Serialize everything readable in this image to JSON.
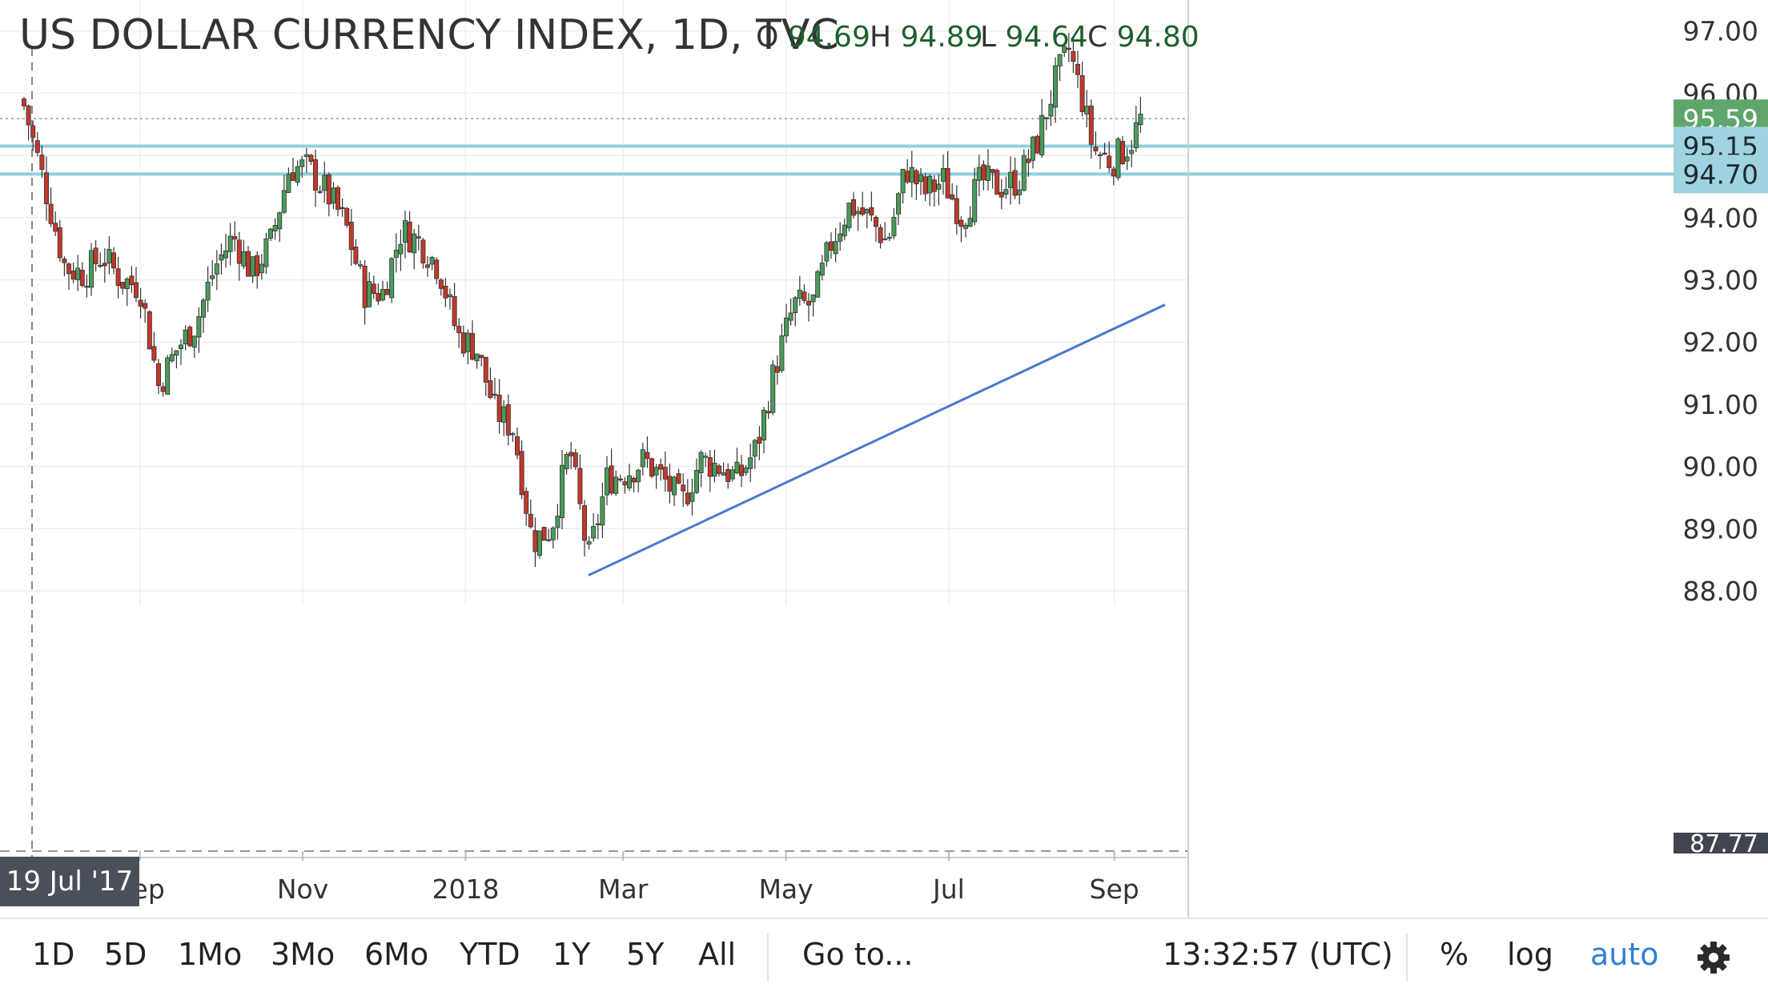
{
  "header": {
    "title": "US DOLLAR CURRENCY INDEX, 1D, TVC",
    "ohlc": [
      {
        "key": "O",
        "value": "94.69"
      },
      {
        "key": "H",
        "value": "94.89"
      },
      {
        "key": "L",
        "value": "94.64"
      },
      {
        "key": "C",
        "value": "94.80"
      }
    ]
  },
  "crosshair_date": "19 Jul '17",
  "toolbar": {
    "ranges": [
      "1D",
      "5D",
      "1Mo",
      "3Mo",
      "6Mo",
      "YTD",
      "1Y",
      "5Y",
      "All"
    ],
    "goto_label": "Go to...",
    "clock": "13:32:57 (UTC)",
    "percent_label": "%",
    "log_label": "log",
    "auto_label": "auto",
    "settings_icon": "gear-icon"
  },
  "colors": {
    "up_candle": "#4a9a5b",
    "down_candle": "#c0392b",
    "horizontal_lines": "#8fcfdb",
    "trendline": "#4a78d0",
    "current_price_badge": "#5fa56c",
    "level_badge": "#9fd3e0",
    "auto_active": "#2f7fd8"
  },
  "chart_data": {
    "type": "candlestick",
    "title": "US DOLLAR CURRENCY INDEX, 1D, TVC",
    "y_ticks": [
      "88.00",
      "89.00",
      "90.00",
      "91.00",
      "92.00",
      "93.00",
      "94.00",
      "96.00",
      "97.00"
    ],
    "ylim": [
      87.77,
      97.3
    ],
    "x_ticks": [
      "Sep",
      "Nov",
      "2018",
      "Mar",
      "May",
      "Jul",
      "Sep"
    ],
    "x_range": [
      "2017-07-19",
      "2018-09-20"
    ],
    "current_price": "95.59",
    "last_visible_low": "87.77",
    "horizontal_levels": [
      {
        "value": 95.15,
        "label": "95.15"
      },
      {
        "value": 94.7,
        "label": "94.70"
      }
    ],
    "trendline": {
      "start": {
        "date": "2018-02-16",
        "value": 88.25
      },
      "end": {
        "date": "2018-09-20",
        "value": 92.6
      }
    },
    "close_path": [
      [
        "2017-07-19",
        95.9
      ],
      [
        "2017-07-28",
        94.4
      ],
      [
        "2017-08-04",
        93.2
      ],
      [
        "2017-08-11",
        93.1
      ],
      [
        "2017-08-18",
        93.4
      ],
      [
        "2017-08-25",
        93.0
      ],
      [
        "2017-09-01",
        92.9
      ],
      [
        "2017-09-08",
        91.3
      ],
      [
        "2017-09-15",
        91.9
      ],
      [
        "2017-09-22",
        92.3
      ],
      [
        "2017-09-29",
        93.2
      ],
      [
        "2017-10-06",
        93.7
      ],
      [
        "2017-10-13",
        93.1
      ],
      [
        "2017-10-20",
        93.6
      ],
      [
        "2017-10-27",
        94.8
      ],
      [
        "2017-11-03",
        94.8
      ],
      [
        "2017-11-10",
        94.4
      ],
      [
        "2017-11-17",
        93.9
      ],
      [
        "2017-11-24",
        92.8
      ],
      [
        "2017-12-01",
        92.8
      ],
      [
        "2017-12-08",
        93.8
      ],
      [
        "2017-12-15",
        93.6
      ],
      [
        "2017-12-22",
        93.2
      ],
      [
        "2017-12-29",
        92.1
      ],
      [
        "2018-01-05",
        91.9
      ],
      [
        "2018-01-12",
        90.9
      ],
      [
        "2018-01-19",
        90.6
      ],
      [
        "2018-01-26",
        88.8
      ],
      [
        "2018-02-02",
        89.0
      ],
      [
        "2018-02-09",
        90.3
      ],
      [
        "2018-02-16",
        88.5
      ],
      [
        "2018-02-23",
        89.8
      ],
      [
        "2018-03-02",
        89.9
      ],
      [
        "2018-03-09",
        90.1
      ],
      [
        "2018-03-16",
        89.8
      ],
      [
        "2018-03-23",
        89.4
      ],
      [
        "2018-03-30",
        90.1
      ],
      [
        "2018-04-06",
        90.0
      ],
      [
        "2018-04-13",
        89.8
      ],
      [
        "2018-04-20",
        90.3
      ],
      [
        "2018-04-27",
        91.6
      ],
      [
        "2018-05-04",
        92.6
      ],
      [
        "2018-05-11",
        92.6
      ],
      [
        "2018-05-18",
        93.6
      ],
      [
        "2018-05-25",
        94.2
      ],
      [
        "2018-06-01",
        94.0
      ],
      [
        "2018-06-08",
        93.6
      ],
      [
        "2018-06-15",
        94.8
      ],
      [
        "2018-06-22",
        94.4
      ],
      [
        "2018-06-29",
        94.6
      ],
      [
        "2018-07-06",
        94.0
      ],
      [
        "2018-07-13",
        94.6
      ],
      [
        "2018-07-20",
        94.5
      ],
      [
        "2018-07-27",
        94.6
      ],
      [
        "2018-08-03",
        95.2
      ],
      [
        "2018-08-10",
        96.2
      ],
      [
        "2018-08-15",
        96.7
      ],
      [
        "2018-08-20",
        95.9
      ],
      [
        "2018-08-24",
        95.1
      ],
      [
        "2018-08-31",
        94.9
      ],
      [
        "2018-09-07",
        95.2
      ],
      [
        "2018-09-11",
        95.6
      ]
    ]
  }
}
